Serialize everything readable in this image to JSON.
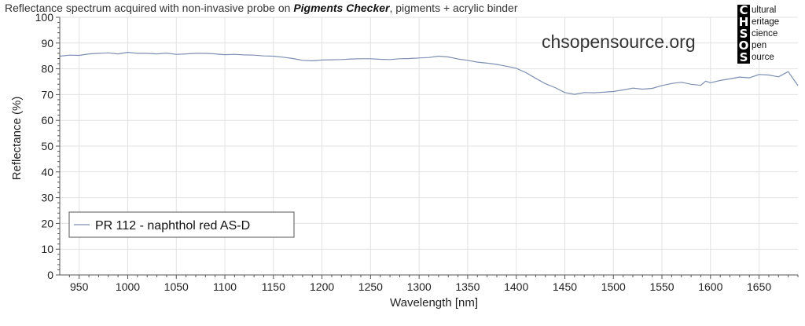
{
  "header": {
    "title_prefix": "Reflectance spectrum acquired with non-invasive probe on ",
    "title_bold": "Pigments Checker",
    "title_suffix": ", pigments + acrylic binder"
  },
  "watermark": {
    "website": "chsopensource.org"
  },
  "logo": {
    "rows": [
      {
        "letter": "C",
        "word": "ultural"
      },
      {
        "letter": "H",
        "word": "eritage"
      },
      {
        "letter": "S",
        "word": "cience"
      },
      {
        "letter": "O",
        "word": "pen"
      },
      {
        "letter": "S",
        "word": "ource"
      }
    ]
  },
  "colors": {
    "series": "#7d8fb3",
    "grid": "#e2e2e2",
    "axis": "#555555"
  },
  "chart_data": {
    "type": "line",
    "xlabel": "Wavelength [nm]",
    "ylabel": "Reflectance (%)",
    "xlim": [
      930,
      1690
    ],
    "ylim": [
      0,
      100
    ],
    "xticks": [
      950,
      1000,
      1050,
      1100,
      1150,
      1200,
      1250,
      1300,
      1350,
      1400,
      1450,
      1500,
      1550,
      1600,
      1650
    ],
    "yticks": [
      0,
      10,
      20,
      30,
      40,
      50,
      60,
      70,
      80,
      90,
      100
    ],
    "grid": true,
    "legend_position": "lower-left",
    "series": [
      {
        "name": "PR 112 - naphthol red AS-D",
        "x": [
          930,
          940,
          950,
          960,
          970,
          980,
          990,
          1000,
          1010,
          1020,
          1030,
          1040,
          1050,
          1060,
          1070,
          1080,
          1090,
          1100,
          1110,
          1120,
          1130,
          1140,
          1150,
          1160,
          1170,
          1180,
          1190,
          1200,
          1210,
          1220,
          1230,
          1240,
          1250,
          1260,
          1270,
          1280,
          1290,
          1300,
          1310,
          1320,
          1330,
          1340,
          1350,
          1360,
          1370,
          1380,
          1390,
          1400,
          1410,
          1420,
          1430,
          1440,
          1450,
          1460,
          1470,
          1480,
          1490,
          1500,
          1510,
          1520,
          1530,
          1540,
          1550,
          1560,
          1570,
          1580,
          1590,
          1595,
          1600,
          1610,
          1620,
          1630,
          1640,
          1650,
          1660,
          1670,
          1680,
          1690
        ],
        "y": [
          84.9,
          85.3,
          85.2,
          85.8,
          86.0,
          86.2,
          85.8,
          86.4,
          86.0,
          86.0,
          85.8,
          86.1,
          85.6,
          85.8,
          86.0,
          86.0,
          85.8,
          85.5,
          85.6,
          85.4,
          85.3,
          85.0,
          84.9,
          84.5,
          84.0,
          83.3,
          83.1,
          83.4,
          83.5,
          83.6,
          83.8,
          83.9,
          83.9,
          83.7,
          83.6,
          83.9,
          84.0,
          84.2,
          84.4,
          84.9,
          84.6,
          83.8,
          83.3,
          82.6,
          82.2,
          81.7,
          81.0,
          80.2,
          78.5,
          76.3,
          74.2,
          72.7,
          70.8,
          70.1,
          70.8,
          70.7,
          70.9,
          71.2,
          71.8,
          72.5,
          72.1,
          72.4,
          73.5,
          74.3,
          74.8,
          74.0,
          73.6,
          75.2,
          74.6,
          75.5,
          76.1,
          76.8,
          76.5,
          77.8,
          77.6,
          76.9,
          78.9,
          73.5
        ]
      }
    ]
  }
}
